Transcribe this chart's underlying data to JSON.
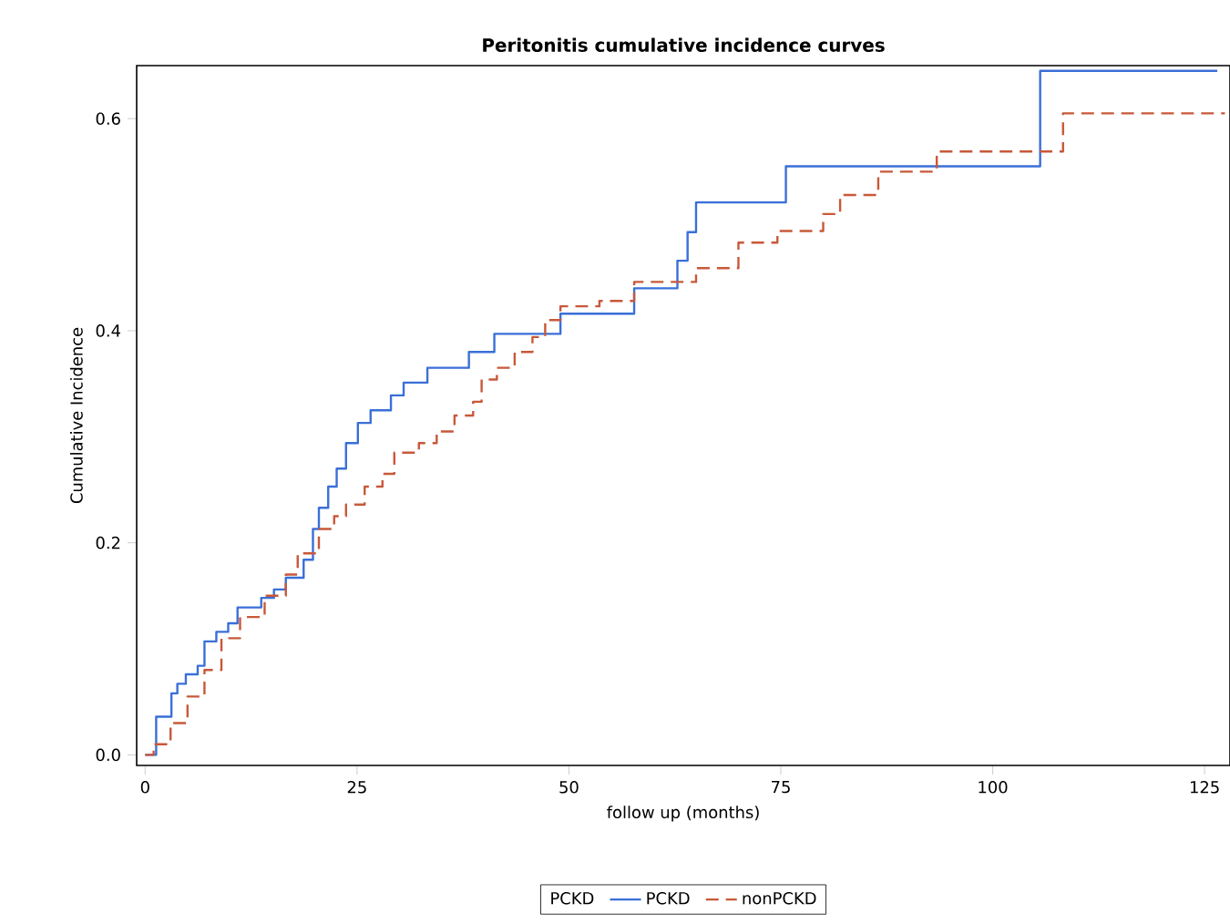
{
  "chart_data": {
    "type": "step",
    "title": "Peritonitis cumulative incidence curves",
    "xlabel": "follow up (months)",
    "ylabel": "Cumulative Incidence",
    "legend_title": "PCKD",
    "legend": "bottom",
    "grid": false,
    "xlim": [
      -1,
      128
    ],
    "ylim": [
      -0.01,
      0.65
    ],
    "xticks": [
      0,
      25,
      50,
      75,
      100,
      125
    ],
    "yticks": [
      {
        "value": 0,
        "label": "0.0"
      },
      {
        "value": 0.2,
        "label": "0.2"
      },
      {
        "value": 0.4,
        "label": "0.4"
      },
      {
        "value": 0.6,
        "label": "0.6"
      }
    ],
    "series": [
      {
        "name": "PCKD",
        "color": "#3a6fd8",
        "line_style": "solid",
        "x": [
          0,
          1.3,
          3.1,
          3.8,
          4.8,
          6.2,
          7,
          8.4,
          9.8,
          10.9,
          13.7,
          15.2,
          16.6,
          18.7,
          19.8,
          20.5,
          21.6,
          22.6,
          23.7,
          25.1,
          26.6,
          29,
          30.5,
          33.3,
          38.2,
          41.2,
          49,
          57.7,
          62.8,
          64,
          65,
          75.6,
          105.6,
          126.5
        ],
        "values": [
          0,
          0.036,
          0.058,
          0.067,
          0.076,
          0.084,
          0.107,
          0.116,
          0.124,
          0.139,
          0.148,
          0.156,
          0.167,
          0.184,
          0.213,
          0.233,
          0.253,
          0.27,
          0.294,
          0.313,
          0.325,
          0.339,
          0.351,
          0.365,
          0.38,
          0.397,
          0.416,
          0.44,
          0.466,
          0.493,
          0.521,
          0.555,
          0.645,
          0.645
        ]
      },
      {
        "name": "nonPCKD",
        "color": "#c8583a",
        "line_style": "dashed",
        "x": [
          0,
          1,
          3,
          5,
          7,
          9,
          11.2,
          14.1,
          16.6,
          18,
          20.5,
          22.3,
          23.7,
          25.9,
          28,
          29.4,
          32.3,
          34.4,
          36.5,
          38.7,
          39.7,
          41.5,
          43.6,
          45.7,
          47.2,
          49,
          53.6,
          57.7,
          65,
          70,
          74.6,
          80,
          82,
          86.5,
          93.4,
          108.3,
          127.4
        ],
        "values": [
          0,
          0.01,
          0.03,
          0.055,
          0.08,
          0.11,
          0.13,
          0.15,
          0.17,
          0.19,
          0.213,
          0.225,
          0.236,
          0.253,
          0.265,
          0.285,
          0.294,
          0.305,
          0.32,
          0.333,
          0.354,
          0.365,
          0.38,
          0.394,
          0.41,
          0.423,
          0.428,
          0.446,
          0.459,
          0.483,
          0.494,
          0.51,
          0.528,
          0.55,
          0.569,
          0.605,
          0.605
        ]
      }
    ]
  }
}
